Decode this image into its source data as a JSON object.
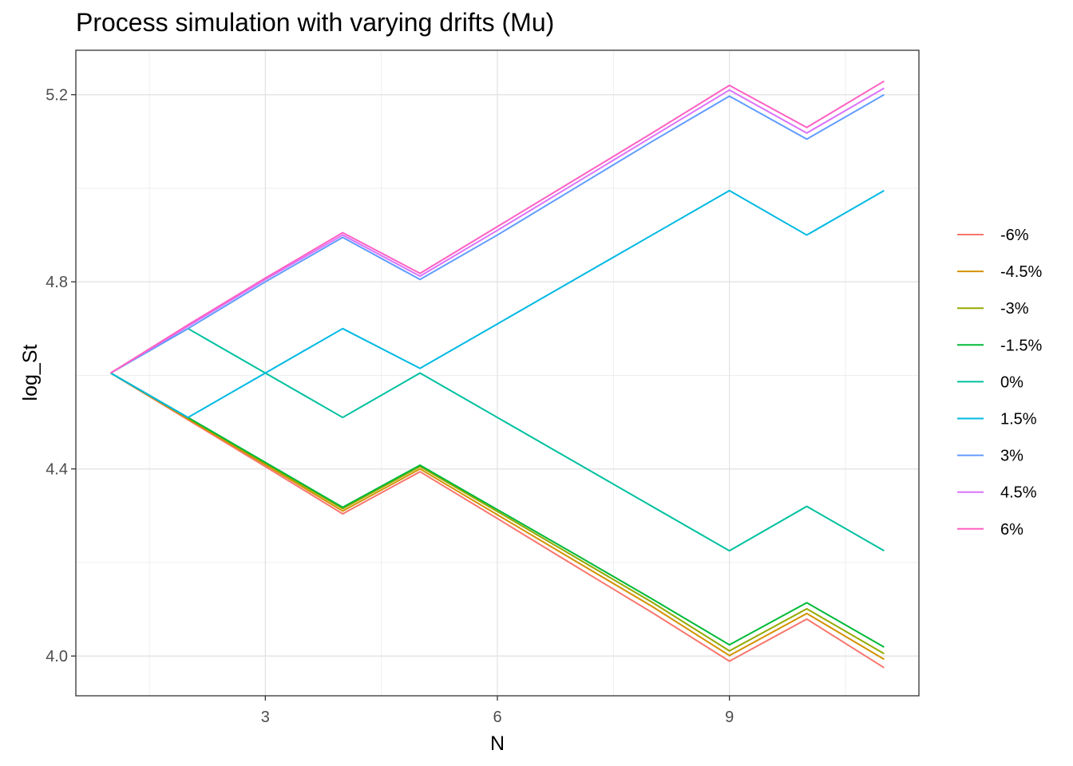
{
  "chart_data": {
    "type": "line",
    "title": "Process simulation with varying drifts (Mu)",
    "xlabel": "N",
    "ylabel": "log_St",
    "xlim": [
      0.55,
      11.45
    ],
    "ylim": [
      3.915,
      5.295
    ],
    "x_ticks": [
      3,
      6,
      9
    ],
    "y_ticks": [
      4.0,
      4.4,
      4.8,
      5.2
    ],
    "x_tick_labels": [
      "3",
      "6",
      "9"
    ],
    "y_tick_labels": [
      "4.0",
      "4.4",
      "4.8",
      "5.2"
    ],
    "grid": true,
    "legend_position": "right",
    "x": [
      1,
      2,
      3,
      4,
      5,
      6,
      7,
      8,
      9,
      10,
      11
    ],
    "series": [
      {
        "name": "-6%",
        "color": "#F8766D",
        "segments": [
          [
            4.605,
            4.505,
            4.405,
            4.304,
            4.394,
            4.294,
            4.193,
            4.093,
            3.989,
            4.079,
            3.975
          ]
        ]
      },
      {
        "name": "-4.5%",
        "color": "#D39200",
        "segments": [
          [
            4.605,
            4.507,
            4.409,
            4.31,
            4.4,
            4.302,
            4.204,
            4.106,
            4.001,
            4.091,
            3.993
          ]
        ]
      },
      {
        "name": "-3%",
        "color": "#93AA00",
        "segments": [
          [
            4.605,
            4.509,
            4.412,
            4.315,
            4.405,
            4.309,
            4.212,
            4.115,
            4.011,
            4.101,
            4.005
          ]
        ]
      },
      {
        "name": "-1.5%",
        "color": "#00BA38",
        "segments": [
          [
            4.605,
            4.51,
            4.414,
            4.318,
            4.408,
            4.313,
            4.218,
            4.122,
            4.024,
            4.114,
            4.019
          ]
        ]
      },
      {
        "name": "0%",
        "color": "#00C19F",
        "segments": [
          [
            4.605,
            4.7,
            4.605,
            4.51,
            4.605,
            4.51,
            4.415,
            4.32,
            4.225,
            4.32,
            4.225
          ]
        ]
      },
      {
        "name": "1.5%",
        "color": "#00B9E3",
        "segments": [
          [
            4.605,
            4.51,
            4.605,
            4.7,
            4.615,
            4.71,
            4.805,
            4.9,
            4.995,
            4.9,
            4.995
          ]
        ]
      },
      {
        "name": "3%",
        "color": "#619CFF",
        "segments": [
          [
            4.605,
            4.7,
            4.8,
            4.895,
            4.805,
            4.9,
            5.0,
            5.1,
            5.197,
            5.105,
            5.2
          ]
        ]
      },
      {
        "name": "4.5%",
        "color": "#DB72FB",
        "segments": [
          [
            4.605,
            4.705,
            4.805,
            4.9,
            4.812,
            4.91,
            5.01,
            5.11,
            5.21,
            5.118,
            5.214
          ]
        ]
      },
      {
        "name": "6%",
        "color": "#FF61C3",
        "segments": [
          [
            4.605,
            4.708,
            4.808,
            4.905,
            4.818,
            4.918,
            5.018,
            5.118,
            5.22,
            5.13,
            5.229
          ]
        ]
      }
    ]
  }
}
